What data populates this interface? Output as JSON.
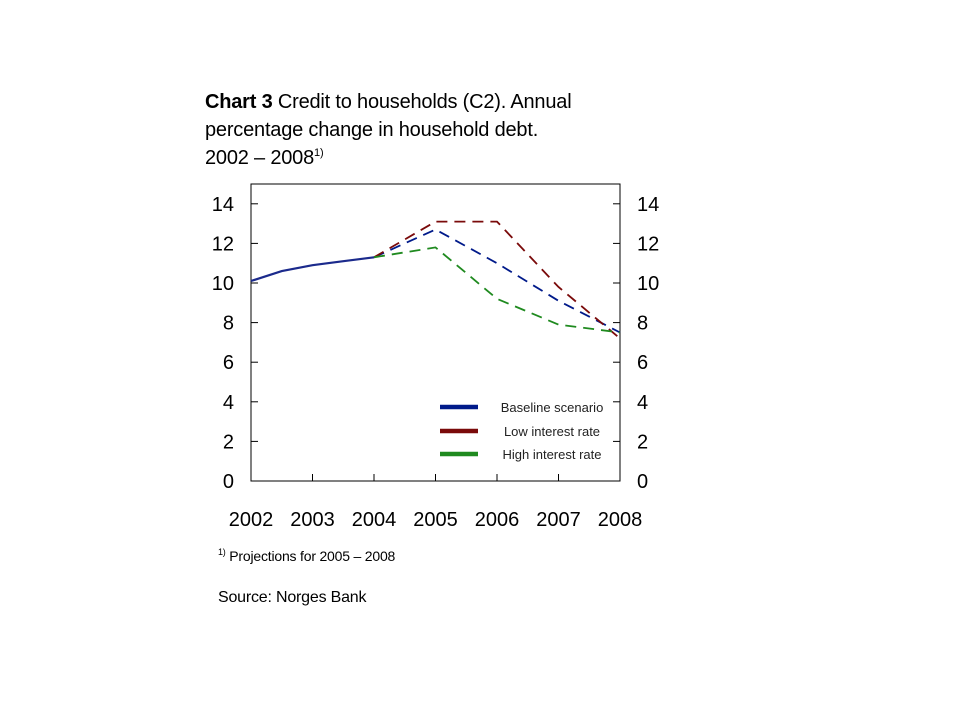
{
  "chart_title": {
    "lead": "Chart 3",
    "line1": " Credit to households (C2). Annual",
    "line2": "percentage change in household debt.",
    "line3": "2002 – 2008",
    "note_marker": "1)"
  },
  "footnote": {
    "marker": "1)",
    "text": " Projections for 2005 – 2008"
  },
  "source": "Source: Norges Bank",
  "chart_data": {
    "type": "line",
    "x_categories": [
      "2002",
      "2003",
      "2004",
      "2005",
      "2006",
      "2007",
      "2008"
    ],
    "y_ticks": [
      0,
      2,
      4,
      6,
      8,
      10,
      12,
      14
    ],
    "ylim": [
      0,
      15
    ],
    "dual_y_axis": true,
    "legend_position": "bottom-right",
    "historical": {
      "color": "#1b2a8c",
      "points": [
        [
          2002,
          10.1
        ],
        [
          2002.5,
          10.6
        ],
        [
          2003,
          10.9
        ],
        [
          2003.5,
          11.1
        ],
        [
          2004,
          11.3
        ]
      ]
    },
    "series": [
      {
        "name": "Baseline scenario",
        "color": "#001a8a",
        "dashed": true,
        "points": [
          [
            2004,
            11.3
          ],
          [
            2005,
            12.7
          ],
          [
            2006,
            11.0
          ],
          [
            2007,
            9.1
          ],
          [
            2008,
            7.5
          ]
        ]
      },
      {
        "name": "Low interest rate",
        "color": "#7a0a0a",
        "dashed": true,
        "points": [
          [
            2004,
            11.3
          ],
          [
            2005,
            13.1
          ],
          [
            2006,
            13.1
          ],
          [
            2007,
            9.8
          ],
          [
            2008,
            7.2
          ]
        ]
      },
      {
        "name": "High interest rate",
        "color": "#1f8a1f",
        "dashed": true,
        "points": [
          [
            2004,
            11.3
          ],
          [
            2005,
            11.8
          ],
          [
            2006,
            9.2
          ],
          [
            2007,
            7.9
          ],
          [
            2008,
            7.5
          ]
        ]
      }
    ]
  }
}
